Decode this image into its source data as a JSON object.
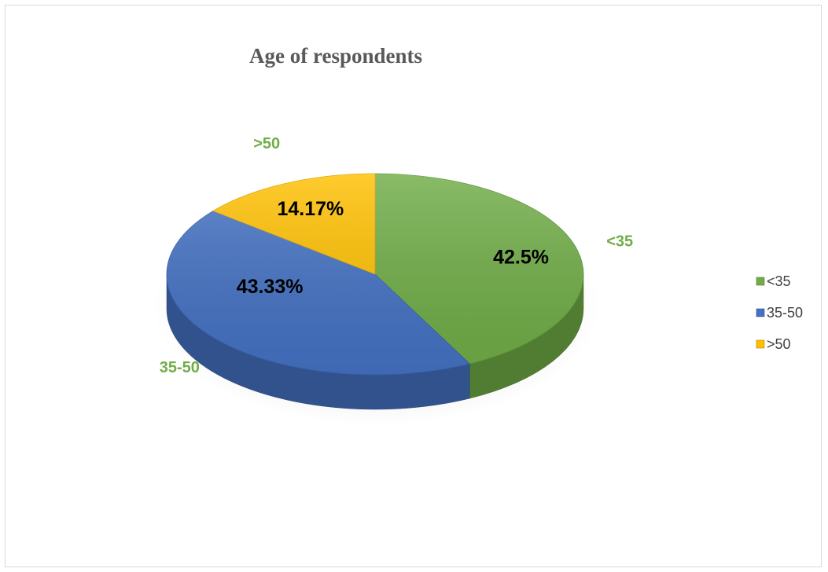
{
  "chart_data": {
    "type": "pie",
    "title": "Age of respondents",
    "categories": [
      "<35",
      "35-50",
      ">50"
    ],
    "values": [
      42.5,
      43.33,
      14.17
    ],
    "data_labels": [
      "42.5%",
      "43.33%",
      "14.17%"
    ],
    "colors": [
      "#70ad47",
      "#4472c4",
      "#ffc000"
    ],
    "style": "3d",
    "legend": {
      "position": "right",
      "entries": [
        "<35",
        "35-50",
        ">50"
      ]
    }
  }
}
